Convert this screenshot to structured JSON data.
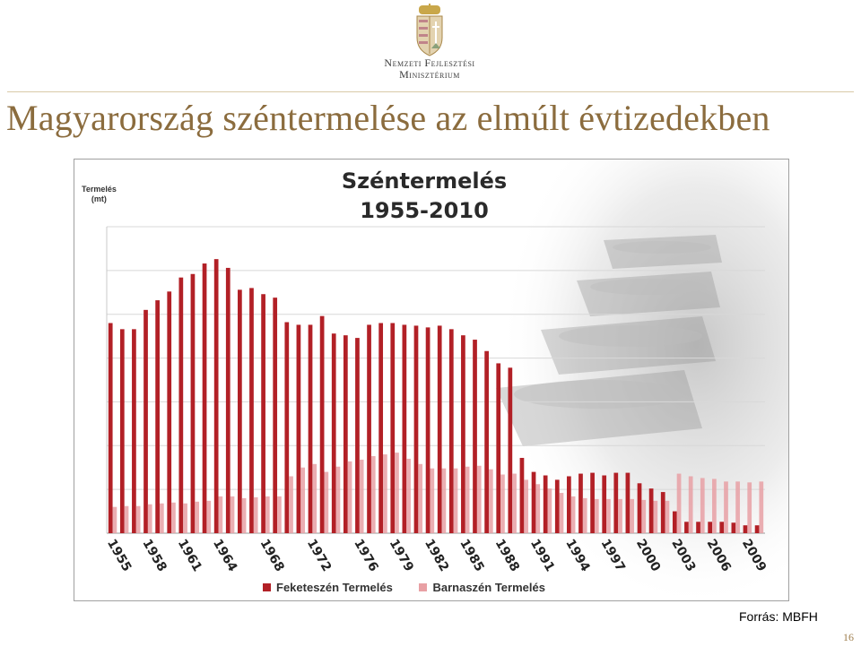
{
  "header": {
    "logo_line1": "Nemzeti Fejlesztési",
    "logo_line2": "Minisztérium"
  },
  "slide": {
    "title": "Magyarország széntermelése az elmúlt évtizedekben",
    "source": "Forrás: MBFH",
    "page_number": "16"
  },
  "colors": {
    "title": "#8b6c3e",
    "black_coal": "#b22026",
    "brown_coal": "#e8a0a4",
    "grid": "#d8d8d8"
  },
  "chart_data": {
    "type": "bar",
    "title_line1": "Széntermelés",
    "title_line2": "1955-2010",
    "ylabel_line1": "Termelés",
    "ylabel_line2": "(mt)",
    "ylim": [
      0,
      35
    ],
    "grid": true,
    "legend_position": "bottom",
    "x": [
      1955,
      1956,
      1957,
      1958,
      1959,
      1960,
      1961,
      1962,
      1963,
      1964,
      1965,
      1966,
      1967,
      1968,
      1969,
      1970,
      1971,
      1972,
      1973,
      1974,
      1975,
      1976,
      1977,
      1978,
      1979,
      1980,
      1981,
      1982,
      1983,
      1984,
      1985,
      1986,
      1987,
      1988,
      1989,
      1990,
      1991,
      1992,
      1993,
      1994,
      1995,
      1996,
      1997,
      1998,
      1999,
      2000,
      2001,
      2002,
      2003,
      2004,
      2005,
      2006,
      2007,
      2008,
      2009,
      2010
    ],
    "x_tick_labels": [
      "1955",
      "1958",
      "1961",
      "1964",
      "1968",
      "1972",
      "1976",
      "1979",
      "1982",
      "1985",
      "1988",
      "1991",
      "1994",
      "1997",
      "2000",
      "2003",
      "2006",
      "2009"
    ],
    "series": [
      {
        "name": "Feketeszén Termelés",
        "values": [
          24.0,
          23.3,
          23.3,
          25.5,
          26.6,
          27.6,
          29.2,
          29.6,
          30.8,
          31.3,
          30.3,
          27.8,
          28.0,
          27.3,
          26.9,
          24.1,
          23.8,
          23.8,
          24.8,
          22.8,
          22.6,
          22.3,
          23.8,
          24.0,
          24.0,
          23.8,
          23.7,
          23.5,
          23.7,
          23.3,
          22.6,
          22.1,
          20.8,
          19.4,
          18.9,
          8.6,
          7.0,
          6.6,
          6.1,
          6.5,
          6.8,
          6.9,
          6.6,
          6.9,
          6.9,
          5.7,
          5.1,
          4.7,
          2.5,
          1.3,
          1.3,
          1.3,
          1.3,
          1.2,
          0.9,
          0.9
        ]
      },
      {
        "name": "Barnaszén Termelés",
        "values": [
          3.0,
          3.1,
          3.1,
          3.3,
          3.4,
          3.5,
          3.4,
          3.6,
          3.7,
          4.2,
          4.2,
          4.0,
          4.1,
          4.2,
          4.2,
          6.5,
          7.5,
          7.9,
          7.0,
          7.6,
          8.2,
          8.4,
          8.8,
          9.0,
          9.2,
          8.5,
          7.9,
          7.4,
          7.4,
          7.4,
          7.6,
          7.7,
          7.3,
          6.7,
          6.8,
          6.1,
          5.6,
          5.1,
          4.6,
          4.2,
          4.0,
          3.9,
          3.9,
          3.9,
          3.9,
          3.8,
          3.7,
          3.7,
          6.8,
          6.5,
          6.3,
          6.2,
          5.9,
          5.9,
          5.8,
          5.9
        ]
      }
    ]
  }
}
